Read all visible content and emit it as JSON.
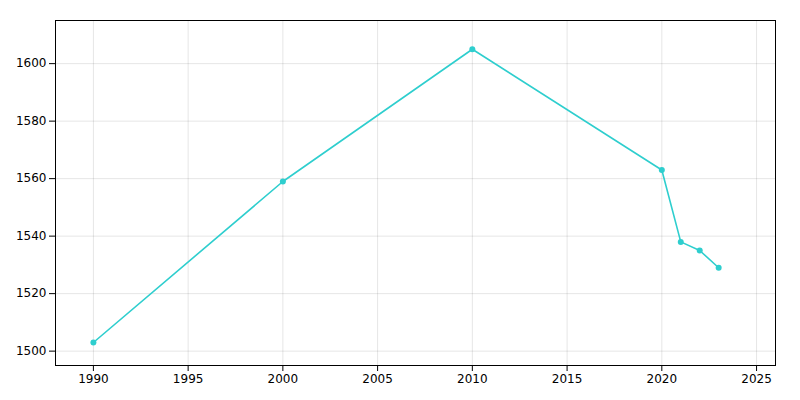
{
  "chart_data": {
    "type": "line",
    "x": [
      1990,
      2000,
      2010,
      2020,
      2021,
      2022,
      2023
    ],
    "values": [
      1503,
      1559,
      1605,
      1563,
      1538,
      1535,
      1529
    ],
    "color": "#2ecece",
    "marker": "circle",
    "xlim": [
      1988,
      2026
    ],
    "ylim": [
      1495,
      1615
    ],
    "xticks": [
      1990,
      1995,
      2000,
      2005,
      2010,
      2015,
      2020,
      2025
    ],
    "yticks": [
      1500,
      1520,
      1540,
      1560,
      1580,
      1600
    ],
    "grid": true
  }
}
